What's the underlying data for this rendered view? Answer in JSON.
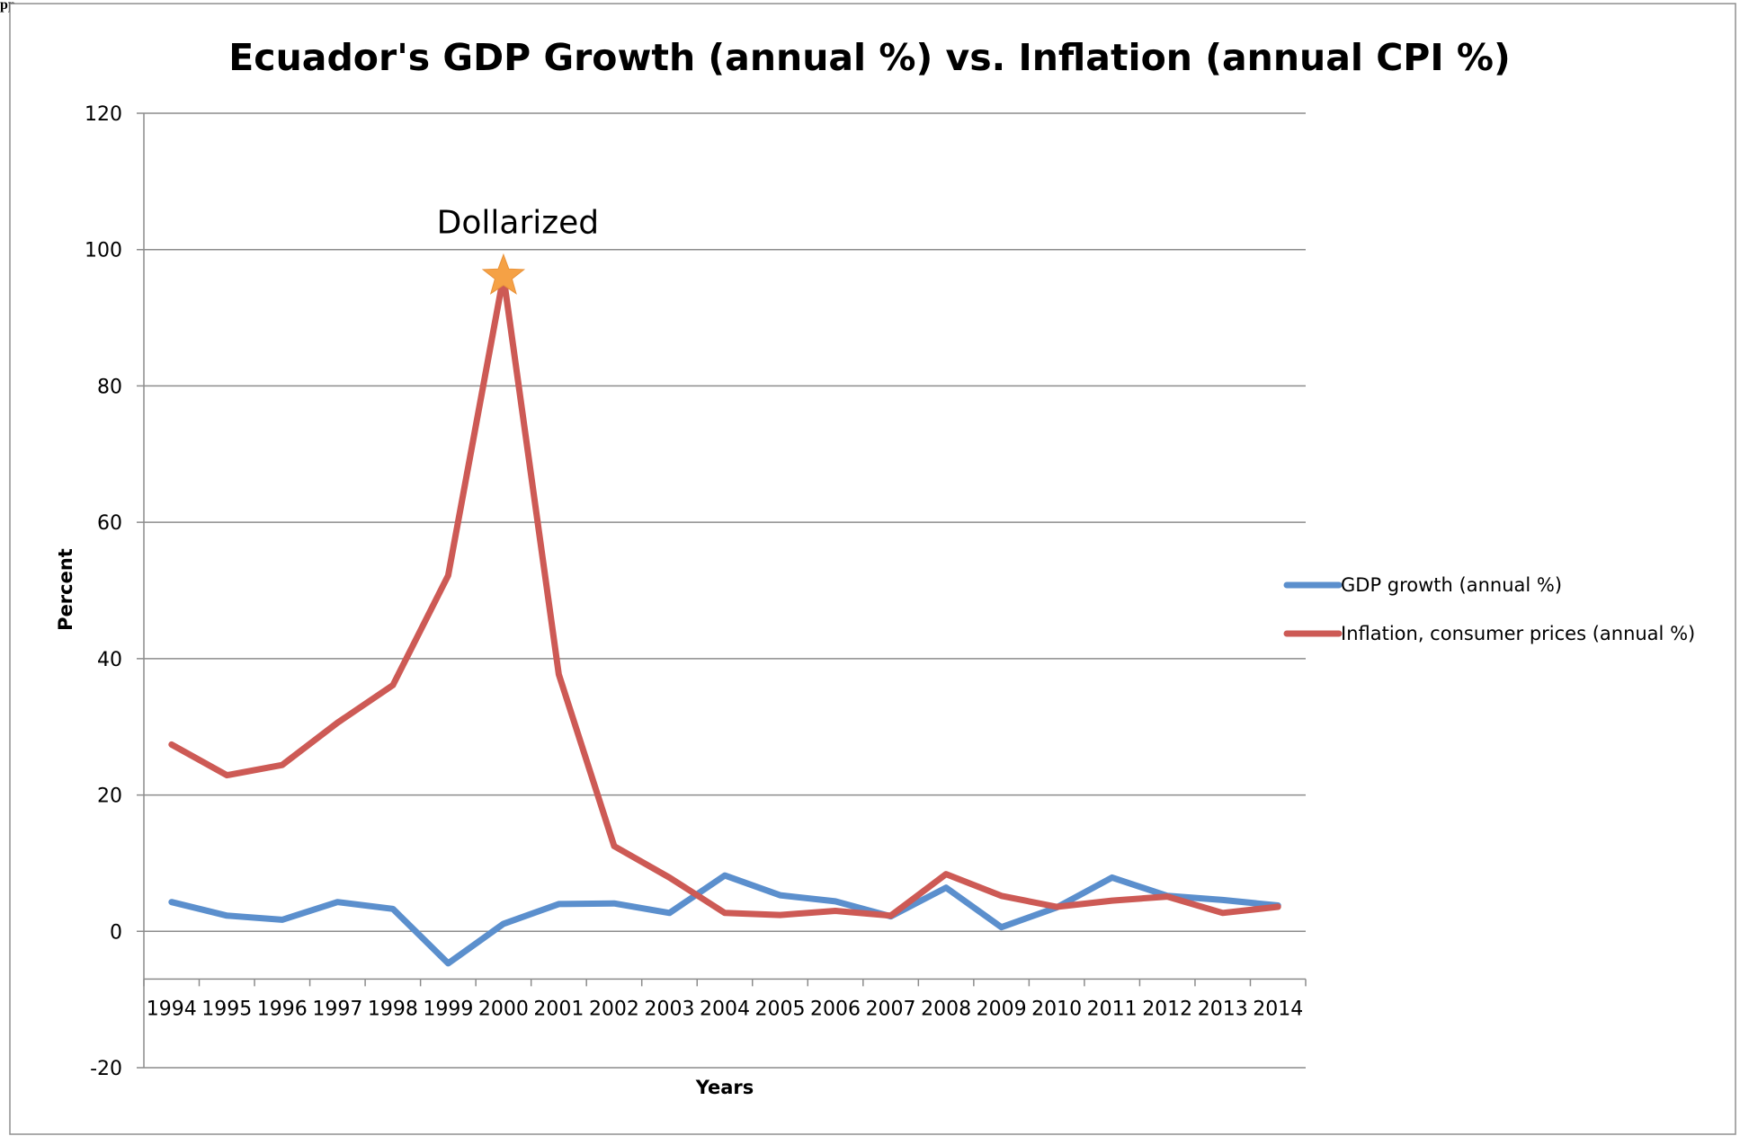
{
  "page": {
    "corner_text": "pp"
  },
  "chart_data": {
    "type": "line",
    "title": "Ecuador's GDP Growth (annual %) vs. Inflation (annual CPI %)",
    "xlabel": "Years",
    "ylabel": "Percent",
    "ylim": [
      -20,
      120
    ],
    "yticks": [
      -20,
      0,
      20,
      40,
      60,
      80,
      100,
      120
    ],
    "grid": true,
    "legend_position": "right",
    "categories": [
      "1994",
      "1995",
      "1996",
      "1997",
      "1998",
      "1999",
      "2000",
      "2001",
      "2002",
      "2003",
      "2004",
      "2005",
      "2006",
      "2007",
      "2008",
      "2009",
      "2010",
      "2011",
      "2012",
      "2013",
      "2014"
    ],
    "series": [
      {
        "name": "GDP growth (annual %)",
        "color": "#5b8fcd",
        "values": [
          4.3,
          2.3,
          1.7,
          4.3,
          3.3,
          -4.7,
          1.1,
          4.0,
          4.1,
          2.7,
          8.2,
          5.3,
          4.4,
          2.2,
          6.4,
          0.6,
          3.5,
          7.9,
          5.2,
          4.6,
          3.8
        ]
      },
      {
        "name": "Inflation, consumer prices (annual %)",
        "color": "#cd5a55",
        "values": [
          27.4,
          22.9,
          24.4,
          30.6,
          36.1,
          52.2,
          96.1,
          37.7,
          12.5,
          7.9,
          2.7,
          2.4,
          3.0,
          2.3,
          8.4,
          5.2,
          3.6,
          4.5,
          5.1,
          2.7,
          3.6
        ]
      }
    ],
    "annotations": [
      {
        "text": "Dollarized",
        "x": "2000",
        "y": 96.1,
        "marker": "star",
        "marker_color": "#f5a145"
      }
    ]
  }
}
